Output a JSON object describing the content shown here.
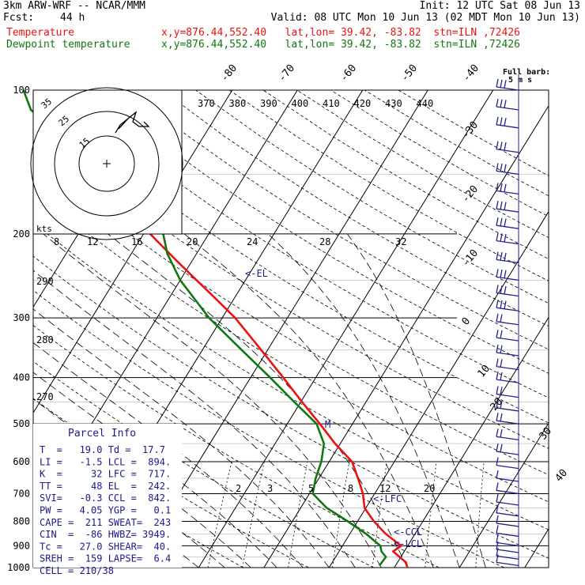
{
  "header": {
    "model": "3km ARW-WRF -- NCAR/MMM",
    "init": "Init: 12 UTC Sat 08 Jun 13",
    "fcst_label": "Fcst:",
    "fcst_hours": "44 h",
    "valid": "Valid: 08 UTC Mon 10 Jun 13 (02 MDT Mon 10 Jun 13)",
    "temp_label": "Temperature",
    "temp_info": "x,y=876.44,552.40   lat,lon= 39.42, -83.82  stn=ILN ,72426",
    "dew_label": "Dewpoint temperature",
    "dew_info": "x,y=876.44,552.40   lat,lon= 39.42, -83.82  stn=ILN ,72426"
  },
  "colors": {
    "temperature": "#ee1111",
    "dewpoint": "#117711",
    "barbs": "#222288",
    "parcel_text": "#1a1a88",
    "grid": "#000000"
  },
  "hodograph": {
    "rings": [
      "15",
      "25",
      "35"
    ],
    "units": "kts"
  },
  "legend": {
    "barb_title": "Full barb:",
    "barb_value": "5 m s"
  },
  "parcel": {
    "title": "Parcel Info",
    "rows": [
      "T  =   19.0 Td =  17.7",
      "LI =   -1.5 LCL =  894.",
      "K  =     32 LFC =  717.",
      "TT =     48 EL  =  242.",
      "SVI=   -0.3 CCL =  842.",
      "PW =   4.05 YGP =   0.1",
      "CAPE =  211 SWEAT=  243",
      "CIN  =  -86 HWBZ= 3949.",
      "Tc =   27.0 SHEAR=  40.",
      "SREH =  159 LAPSE=  6.4",
      "CELL = 210/38"
    ]
  },
  "markers": {
    "el": "<-EL",
    "lfc": "<-LFC",
    "ccl": "<-CCL",
    "lcl": "<-LCL",
    "m": "M"
  },
  "chart_data": {
    "type": "line",
    "title": "",
    "xlabel": "",
    "ylabel": "",
    "ylim": [
      1000,
      100
    ],
    "y_log_scale": true,
    "pressure_ticks": [
      "100",
      "200",
      "300",
      "400",
      "500",
      "600",
      "700",
      "800",
      "900",
      "1000"
    ],
    "temp_tick_labels": [
      "-80",
      "-70",
      "-60",
      "-50",
      "-40",
      "-30",
      "-20",
      "-10",
      "0",
      "10",
      "20",
      "30",
      "40"
    ],
    "theta_labels": [
      "370",
      "380",
      "390",
      "400",
      "410",
      "420",
      "430",
      "440",
      "290",
      "280",
      "270"
    ],
    "mixing_ratio_labels_upper": [
      "8",
      "12",
      "16",
      "20",
      "24",
      "28",
      "32"
    ],
    "mixing_ratio_labels_lower": [
      "2",
      "3",
      "5",
      "8",
      "12",
      "20"
    ],
    "series": [
      {
        "name": "Temperature",
        "points": [
          [
            1000,
            22
          ],
          [
            975,
            21.3
          ],
          [
            950,
            19.8
          ],
          [
            925,
            18.3
          ],
          [
            900,
            19
          ],
          [
            850,
            15.5
          ],
          [
            800,
            12.5
          ],
          [
            750,
            9.8
          ],
          [
            700,
            8.2
          ],
          [
            650,
            6
          ],
          [
            600,
            3.5
          ],
          [
            550,
            -0.8
          ],
          [
            500,
            -5
          ],
          [
            450,
            -9.8
          ],
          [
            400,
            -15
          ],
          [
            350,
            -21
          ],
          [
            300,
            -28
          ],
          [
            275,
            -32.5
          ],
          [
            250,
            -37.5
          ],
          [
            225,
            -43
          ],
          [
            200,
            -49
          ],
          [
            175,
            -52.5
          ],
          [
            150,
            -55
          ],
          [
            125,
            -58
          ],
          [
            110,
            -61
          ],
          [
            100,
            -62
          ]
        ]
      },
      {
        "name": "Dewpoint temperature",
        "points": [
          [
            990,
            17.5
          ],
          [
            975,
            17.6
          ],
          [
            950,
            17.7
          ],
          [
            925,
            16.5
          ],
          [
            900,
            15.8
          ],
          [
            850,
            12.5
          ],
          [
            800,
            8.5
          ],
          [
            750,
            4
          ],
          [
            700,
            0.5
          ],
          [
            650,
            -0.5
          ],
          [
            600,
            -1.2
          ],
          [
            550,
            -2.5
          ],
          [
            500,
            -5.5
          ],
          [
            450,
            -11
          ],
          [
            400,
            -17
          ],
          [
            350,
            -24
          ],
          [
            300,
            -32
          ],
          [
            250,
            -40
          ],
          [
            220,
            -44.5
          ],
          [
            200,
            -47
          ],
          [
            180,
            -52
          ],
          [
            160,
            -58
          ],
          [
            140,
            -66
          ],
          [
            120,
            -74
          ],
          [
            110,
            -79
          ],
          [
            100,
            -82
          ]
        ]
      }
    ]
  }
}
